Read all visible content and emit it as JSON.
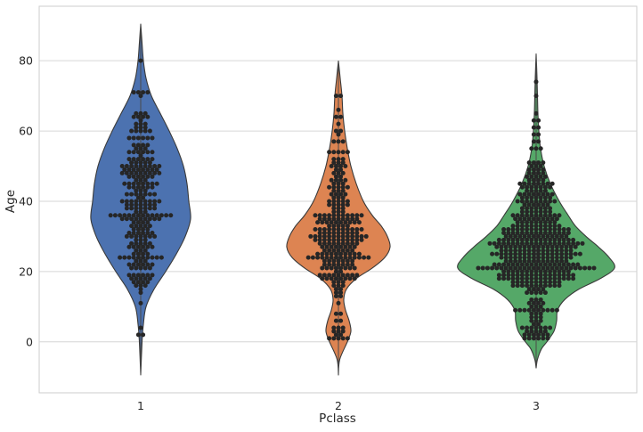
{
  "chart_data": {
    "type": "violin",
    "xlabel": "Pclass",
    "ylabel": "Age",
    "categories": [
      "1",
      "2",
      "3"
    ],
    "ylim": [
      -14.5,
      95.5
    ],
    "yticks": [
      0,
      20,
      40,
      60,
      80
    ],
    "grid": true,
    "colors": [
      "#4c72b0",
      "#dd8452",
      "#55a868"
    ],
    "swarm_point_color": "#262626",
    "violins": [
      {
        "category": "1",
        "min": -9.5,
        "max": 90.5,
        "half_width_profile": [
          [
            -9.5,
            0
          ],
          [
            0,
            1.5
          ],
          [
            5,
            3
          ],
          [
            10,
            6
          ],
          [
            15,
            15
          ],
          [
            20,
            28
          ],
          [
            25,
            40
          ],
          [
            30,
            50
          ],
          [
            35,
            56
          ],
          [
            40,
            54
          ],
          [
            45,
            52
          ],
          [
            50,
            48
          ],
          [
            55,
            41
          ],
          [
            60,
            32
          ],
          [
            65,
            22
          ],
          [
            70,
            12
          ],
          [
            75,
            6
          ],
          [
            80,
            3
          ],
          [
            85,
            1.5
          ],
          [
            90.5,
            0
          ]
        ]
      },
      {
        "category": "2",
        "min": -9.5,
        "max": 80,
        "half_width_profile": [
          [
            -9.5,
            0
          ],
          [
            -5,
            1.5
          ],
          [
            0,
            10
          ],
          [
            3,
            14
          ],
          [
            6,
            12
          ],
          [
            9,
            8
          ],
          [
            12,
            6
          ],
          [
            15,
            9
          ],
          [
            18,
            20
          ],
          [
            21,
            38
          ],
          [
            24,
            52
          ],
          [
            27,
            58
          ],
          [
            30,
            55
          ],
          [
            33,
            48
          ],
          [
            36,
            38
          ],
          [
            40,
            28
          ],
          [
            45,
            20
          ],
          [
            50,
            14
          ],
          [
            55,
            10
          ],
          [
            60,
            7
          ],
          [
            65,
            5
          ],
          [
            70,
            4
          ],
          [
            75,
            2
          ],
          [
            80,
            0
          ]
        ]
      },
      {
        "category": "3",
        "min": -7.5,
        "max": 82,
        "half_width_profile": [
          [
            -7.5,
            0
          ],
          [
            -5,
            1.5
          ],
          [
            -2,
            6
          ],
          [
            0,
            12
          ],
          [
            3,
            20
          ],
          [
            6,
            23
          ],
          [
            9,
            24
          ],
          [
            12,
            32
          ],
          [
            15,
            48
          ],
          [
            18,
            72
          ],
          [
            21,
            88
          ],
          [
            24,
            82
          ],
          [
            27,
            70
          ],
          [
            30,
            56
          ],
          [
            33,
            44
          ],
          [
            36,
            36
          ],
          [
            40,
            26
          ],
          [
            45,
            16
          ],
          [
            50,
            9
          ],
          [
            55,
            5
          ],
          [
            60,
            3
          ],
          [
            65,
            2
          ],
          [
            70,
            1.5
          ],
          [
            75,
            1
          ],
          [
            82,
            0
          ]
        ]
      }
    ],
    "swarm_age_counts": [
      {
        "category": "1",
        "counts": [
          [
            2,
            2
          ],
          [
            4,
            1
          ],
          [
            11,
            1
          ],
          [
            14,
            1
          ],
          [
            15,
            1
          ],
          [
            16,
            3
          ],
          [
            17,
            4
          ],
          [
            18,
            5
          ],
          [
            19,
            6
          ],
          [
            21,
            5
          ],
          [
            22,
            6
          ],
          [
            23,
            3
          ],
          [
            24,
            10
          ],
          [
            25,
            4
          ],
          [
            26,
            3
          ],
          [
            27,
            6
          ],
          [
            28,
            5
          ],
          [
            29,
            3
          ],
          [
            30,
            7
          ],
          [
            31,
            6
          ],
          [
            32,
            4
          ],
          [
            33,
            5
          ],
          [
            34,
            4
          ],
          [
            35,
            9
          ],
          [
            36,
            14
          ],
          [
            37,
            3
          ],
          [
            38,
            7
          ],
          [
            39,
            7
          ],
          [
            40,
            9
          ],
          [
            41,
            2
          ],
          [
            42,
            7
          ],
          [
            43,
            3
          ],
          [
            44,
            6
          ],
          [
            45,
            8
          ],
          [
            46,
            3
          ],
          [
            47,
            6
          ],
          [
            48,
            9
          ],
          [
            49,
            8
          ],
          [
            50,
            9
          ],
          [
            51,
            5
          ],
          [
            52,
            6
          ],
          [
            53,
            1
          ],
          [
            54,
            6
          ],
          [
            55,
            3
          ],
          [
            56,
            4
          ],
          [
            58,
            6
          ],
          [
            60,
            5
          ],
          [
            61,
            3
          ],
          [
            62,
            3
          ],
          [
            63,
            1
          ],
          [
            64,
            4
          ],
          [
            65,
            3
          ],
          [
            70,
            1
          ],
          [
            71,
            4
          ],
          [
            80,
            1
          ]
        ]
      },
      {
        "category": "2",
        "counts": [
          [
            1,
            5
          ],
          [
            2,
            2
          ],
          [
            3,
            3
          ],
          [
            4,
            3
          ],
          [
            6,
            2
          ],
          [
            8,
            2
          ],
          [
            11,
            1
          ],
          [
            13,
            2
          ],
          [
            14,
            2
          ],
          [
            15,
            2
          ],
          [
            16,
            3
          ],
          [
            17,
            3
          ],
          [
            18,
            8
          ],
          [
            19,
            9
          ],
          [
            20,
            2
          ],
          [
            21,
            8
          ],
          [
            22,
            7
          ],
          [
            23,
            7
          ],
          [
            24,
            14
          ],
          [
            25,
            10
          ],
          [
            26,
            7
          ],
          [
            27,
            8
          ],
          [
            28,
            9
          ],
          [
            29,
            11
          ],
          [
            30,
            13
          ],
          [
            31,
            9
          ],
          [
            32,
            11
          ],
          [
            33,
            5
          ],
          [
            34,
            10
          ],
          [
            35,
            9
          ],
          [
            36,
            11
          ],
          [
            37,
            3
          ],
          [
            38,
            3
          ],
          [
            39,
            5
          ],
          [
            40,
            5
          ],
          [
            41,
            3
          ],
          [
            42,
            4
          ],
          [
            43,
            3
          ],
          [
            44,
            5
          ],
          [
            45,
            3
          ],
          [
            46,
            4
          ],
          [
            47,
            2
          ],
          [
            48,
            3
          ],
          [
            49,
            2
          ],
          [
            50,
            4
          ],
          [
            51,
            3
          ],
          [
            52,
            3
          ],
          [
            54,
            5
          ],
          [
            57,
            3
          ],
          [
            59,
            1
          ],
          [
            60,
            2
          ],
          [
            62,
            1
          ],
          [
            64,
            2
          ],
          [
            66,
            1
          ],
          [
            70,
            2
          ]
        ]
      },
      {
        "category": "3",
        "counts": [
          [
            1,
            6
          ],
          [
            2,
            6
          ],
          [
            3,
            5
          ],
          [
            4,
            7
          ],
          [
            5,
            2
          ],
          [
            6,
            3
          ],
          [
            7,
            3
          ],
          [
            8,
            3
          ],
          [
            9,
            10
          ],
          [
            10,
            3
          ],
          [
            11,
            4
          ],
          [
            12,
            3
          ],
          [
            14,
            5
          ],
          [
            15,
            4
          ],
          [
            16,
            11
          ],
          [
            17,
            11
          ],
          [
            18,
            17
          ],
          [
            19,
            17
          ],
          [
            20,
            15
          ],
          [
            21,
            26
          ],
          [
            22,
            19
          ],
          [
            23,
            14
          ],
          [
            24,
            16
          ],
          [
            25,
            20
          ],
          [
            26,
            16
          ],
          [
            27,
            18
          ],
          [
            28,
            21
          ],
          [
            29,
            17
          ],
          [
            30,
            14
          ],
          [
            31,
            15
          ],
          [
            32,
            15
          ],
          [
            33,
            11
          ],
          [
            34,
            9
          ],
          [
            35,
            10
          ],
          [
            36,
            11
          ],
          [
            37,
            7
          ],
          [
            38,
            7
          ],
          [
            39,
            6
          ],
          [
            40,
            9
          ],
          [
            41,
            7
          ],
          [
            42,
            8
          ],
          [
            43,
            5
          ],
          [
            44,
            7
          ],
          [
            45,
            8
          ],
          [
            46,
            4
          ],
          [
            47,
            5
          ],
          [
            48,
            4
          ],
          [
            49,
            4
          ],
          [
            50,
            3
          ],
          [
            51,
            4
          ],
          [
            55,
            3
          ],
          [
            57,
            2
          ],
          [
            59,
            2
          ],
          [
            61,
            2
          ],
          [
            63,
            2
          ],
          [
            65,
            1
          ],
          [
            70,
            1
          ],
          [
            74,
            1
          ]
        ]
      }
    ]
  }
}
